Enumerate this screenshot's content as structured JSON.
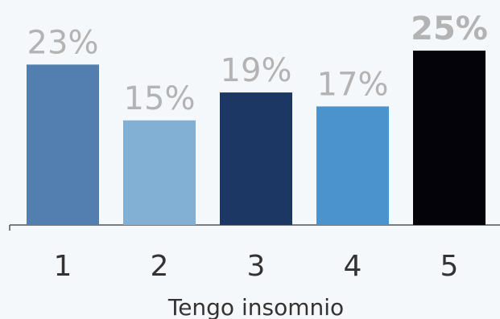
{
  "chart_data": {
    "type": "bar",
    "title": "",
    "xlabel": "Tengo insomnio",
    "ylabel": "",
    "categories": [
      "1",
      "2",
      "3",
      "4",
      "5"
    ],
    "values": [
      23,
      15,
      19,
      17,
      25
    ],
    "value_labels": [
      "23%",
      "15%",
      "19%",
      "17%",
      "25%"
    ],
    "colors": [
      "#527fb0",
      "#82afd4",
      "#1c3764",
      "#4b93cc",
      "#030309"
    ],
    "bold_labels": [
      false,
      false,
      false,
      false,
      true
    ],
    "ylim": [
      0,
      25
    ],
    "grid": false,
    "legend": "none"
  }
}
